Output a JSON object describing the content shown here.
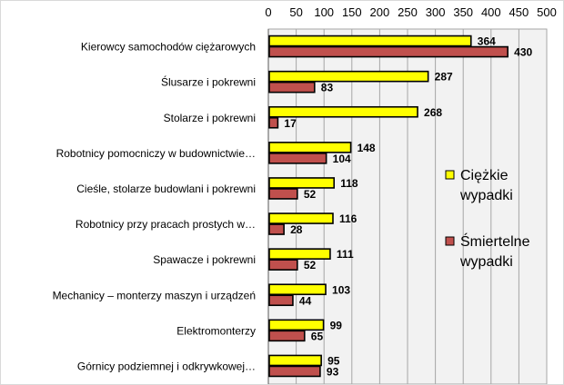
{
  "chart_data": {
    "type": "bar",
    "orientation": "horizontal",
    "title": "",
    "xlabel": "",
    "ylabel": "",
    "xlim": [
      0,
      500
    ],
    "x_ticks": [
      "0",
      "50",
      "100",
      "150",
      "200",
      "250",
      "300",
      "350",
      "400",
      "450",
      "500"
    ],
    "grid": true,
    "legend_position": "right",
    "categories": [
      "Kierowcy samochodów ciężarowych",
      "Ślusarze i pokrewni",
      "Stolarze i pokrewni",
      "Robotnicy pomocniczy w budownictwie…",
      "Cieśle, stolarze budowlani i pokrewni",
      "Robotnicy przy pracach prostych w…",
      "Spawacze i pokrewni",
      "Mechanicy – monterzy maszyn i urządzeń",
      "Elektromonterzy",
      "Górnicy podziemnej i odkrywkowej…"
    ],
    "series": [
      {
        "name": "Ciężkie wypadki",
        "legend_lines": [
          "Ciężkie",
          "wypadki"
        ],
        "color": "#ffff00",
        "values": [
          364,
          287,
          268,
          148,
          118,
          116,
          111,
          103,
          99,
          95
        ]
      },
      {
        "name": "Śmiertelne wypadki",
        "legend_lines": [
          "Śmiertelne",
          "wypadki"
        ],
        "color": "#c0504d",
        "values": [
          430,
          83,
          17,
          104,
          52,
          28,
          52,
          44,
          65,
          93
        ]
      }
    ]
  }
}
